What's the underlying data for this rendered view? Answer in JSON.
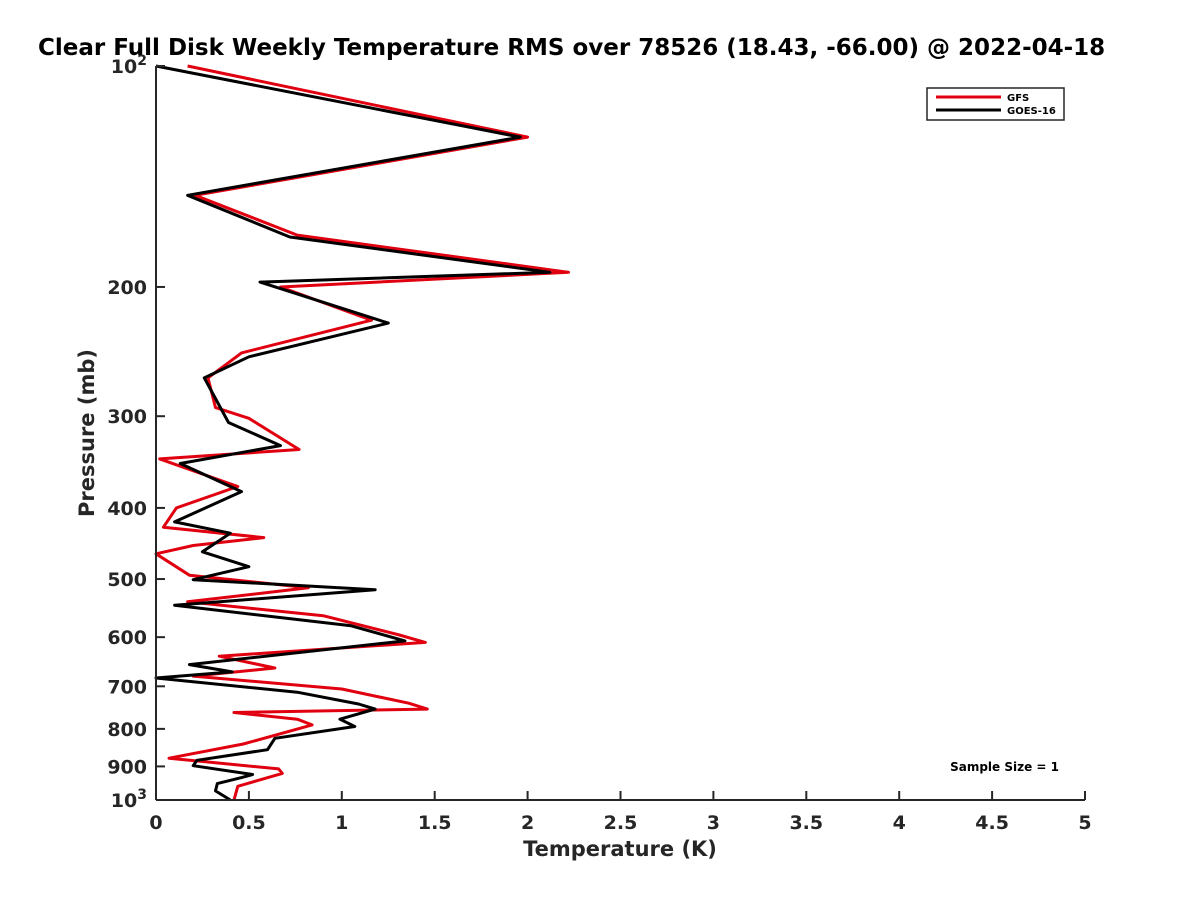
{
  "chart_data": {
    "type": "line",
    "title": "Clear Full Disk Weekly Temperature RMS over 78526 (18.43, -66.00) @ 2022-04-18",
    "xlabel": "Temperature (K)",
    "ylabel": "Pressure (mb)",
    "xlim": [
      0,
      5
    ],
    "ylim": [
      100,
      1000
    ],
    "y_scale": "log",
    "y_reversed": true,
    "grid": false,
    "legend_position": "top-right",
    "x_ticks": [
      "0",
      "0.5",
      "1",
      "1.5",
      "2",
      "2.5",
      "3",
      "3.5",
      "4",
      "4.5",
      "5"
    ],
    "y_ticks": [
      {
        "value": 100,
        "base": "10",
        "exp": "2"
      },
      {
        "value": 200,
        "label": "200"
      },
      {
        "value": 300,
        "label": "300"
      },
      {
        "value": 400,
        "label": "400"
      },
      {
        "value": 500,
        "label": "500"
      },
      {
        "value": 600,
        "label": "600"
      },
      {
        "value": 700,
        "label": "700"
      },
      {
        "value": 800,
        "label": "800"
      },
      {
        "value": 900,
        "label": "900"
      },
      {
        "value": 1000,
        "base": "10",
        "exp": "3"
      }
    ],
    "annotation": "Sample Size = 1",
    "series": [
      {
        "name": "GFS",
        "color": "#e0000f",
        "points": [
          [
            0.17,
            100
          ],
          [
            2.0,
            125
          ],
          [
            0.21,
            150
          ],
          [
            0.76,
            170
          ],
          [
            2.22,
            191
          ],
          [
            0.67,
            200
          ],
          [
            1.16,
            222
          ],
          [
            0.46,
            246
          ],
          [
            0.28,
            266
          ],
          [
            0.32,
            292
          ],
          [
            0.5,
            302
          ],
          [
            0.77,
            333
          ],
          [
            0.02,
            343
          ],
          [
            0.44,
            374
          ],
          [
            0.11,
            400
          ],
          [
            0.04,
            425
          ],
          [
            0.58,
            439
          ],
          [
            0.2,
            450
          ],
          [
            0.0,
            462
          ],
          [
            0.18,
            494
          ],
          [
            0.82,
            514
          ],
          [
            0.17,
            537
          ],
          [
            0.9,
            561
          ],
          [
            1.31,
            596
          ],
          [
            1.45,
            610
          ],
          [
            0.34,
            637
          ],
          [
            0.64,
            661
          ],
          [
            0.2,
            678
          ],
          [
            1.0,
            706
          ],
          [
            1.36,
            738
          ],
          [
            1.46,
            752
          ],
          [
            0.42,
            760
          ],
          [
            0.76,
            776
          ],
          [
            0.84,
            790
          ],
          [
            0.47,
            839
          ],
          [
            0.07,
            877
          ],
          [
            0.66,
            907
          ],
          [
            0.68,
            920
          ],
          [
            0.44,
            958
          ],
          [
            0.42,
            1000
          ]
        ]
      },
      {
        "name": "GOES-16",
        "color": "#000000",
        "points": [
          [
            0.0,
            100
          ],
          [
            1.96,
            125
          ],
          [
            0.17,
            150
          ],
          [
            0.72,
            171
          ],
          [
            2.12,
            191
          ],
          [
            0.56,
            197
          ],
          [
            1.25,
            224
          ],
          [
            0.5,
            249
          ],
          [
            0.26,
            266
          ],
          [
            0.39,
            306
          ],
          [
            0.67,
            329
          ],
          [
            0.13,
            348
          ],
          [
            0.46,
            380
          ],
          [
            0.1,
            418
          ],
          [
            0.4,
            433
          ],
          [
            0.25,
            459
          ],
          [
            0.5,
            481
          ],
          [
            0.2,
            501
          ],
          [
            1.18,
            517
          ],
          [
            0.1,
            543
          ],
          [
            1.05,
            579
          ],
          [
            1.34,
            607
          ],
          [
            0.18,
            654
          ],
          [
            0.41,
            669
          ],
          [
            0.0,
            682
          ],
          [
            0.76,
            713
          ],
          [
            1.09,
            740
          ],
          [
            1.18,
            752
          ],
          [
            0.99,
            776
          ],
          [
            1.07,
            794
          ],
          [
            0.64,
            824
          ],
          [
            0.6,
            854
          ],
          [
            0.22,
            883
          ],
          [
            0.2,
            898
          ],
          [
            0.52,
            923
          ],
          [
            0.46,
            932
          ],
          [
            0.33,
            950
          ],
          [
            0.32,
            972
          ],
          [
            0.4,
            1000
          ]
        ]
      }
    ]
  }
}
